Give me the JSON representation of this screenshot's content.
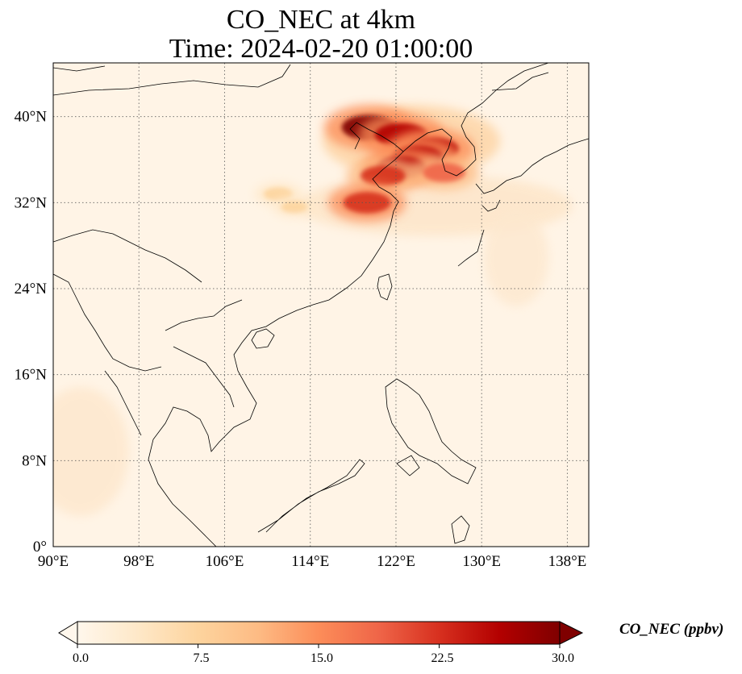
{
  "title_line1": "CO_NEC at 4km",
  "title_line2": "Time: 2024-02-20 01:00:00",
  "map": {
    "lon_range": [
      90,
      140
    ],
    "lat_range": [
      0,
      45
    ],
    "lon_ticks": [
      90,
      98,
      106,
      114,
      122,
      130,
      138
    ],
    "lon_tick_labels": [
      "90°E",
      "98°E",
      "106°E",
      "114°E",
      "122°E",
      "130°E",
      "138°E"
    ],
    "lat_ticks": [
      0,
      8,
      16,
      24,
      32,
      40
    ],
    "lat_tick_labels": [
      "0°",
      "8°N",
      "16°N",
      "24°N",
      "32°N",
      "40°N"
    ],
    "gridlines": "dotted",
    "colormap": "OrRd",
    "background_color": "#fff4e6",
    "coastline_color": "#000000",
    "plumes": [
      {
        "lon": 119.5,
        "lat": 39.0,
        "value": 30
      },
      {
        "lon": 122.5,
        "lat": 38.3,
        "value": 28
      },
      {
        "lon": 125.5,
        "lat": 37.0,
        "value": 26
      },
      {
        "lon": 124.0,
        "lat": 36.2,
        "value": 27
      },
      {
        "lon": 122.5,
        "lat": 35.3,
        "value": 25
      },
      {
        "lon": 120.8,
        "lat": 34.5,
        "value": 22
      },
      {
        "lon": 126.5,
        "lat": 34.8,
        "value": 20
      },
      {
        "lon": 119.3,
        "lat": 32.0,
        "value": 24
      },
      {
        "lon": 111.0,
        "lat": 32.8,
        "value": 9
      },
      {
        "lon": 112.5,
        "lat": 31.6,
        "value": 7
      }
    ]
  },
  "colorbar": {
    "min": 0.0,
    "max": 30.0,
    "ticks": [
      "0.0",
      "7.5",
      "15.0",
      "22.5",
      "30.0"
    ],
    "label": "CO_NEC (ppbv)",
    "colors": [
      "#fff7ec",
      "#fee8c8",
      "#fdd49e",
      "#fdbb84",
      "#fc8d59",
      "#ef6548",
      "#d7301f",
      "#b30000",
      "#7f0000"
    ]
  }
}
